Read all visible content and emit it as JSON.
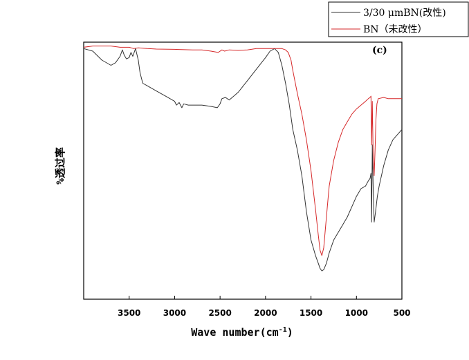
{
  "chart_data": {
    "type": "line",
    "panel_label": "(c)",
    "xlabel": "Wave number(cm",
    "xlabel_sup": "-1",
    "xlabel_end": ")",
    "ylabel": "%透过率",
    "xlim": [
      4000,
      500
    ],
    "ylim": [
      0,
      100
    ],
    "x_ticks": [
      3500,
      3000,
      2500,
      2000,
      1500,
      1000,
      500
    ],
    "x_tick_labels": [
      "3500",
      "3000",
      "2500",
      "2000",
      "1500",
      "1000",
      "500"
    ],
    "legend_placement": "top-right",
    "series": [
      {
        "name": "3/30 μmBN(改性)",
        "color": "#333333",
        "points": [
          [
            4000,
            97.5
          ],
          [
            3900,
            96.5
          ],
          [
            3800,
            93
          ],
          [
            3700,
            91
          ],
          [
            3650,
            92
          ],
          [
            3600,
            94.5
          ],
          [
            3575,
            97
          ],
          [
            3555,
            95
          ],
          [
            3530,
            93.5
          ],
          [
            3500,
            94
          ],
          [
            3480,
            96
          ],
          [
            3460,
            94.5
          ],
          [
            3430,
            97.5
          ],
          [
            3400,
            93
          ],
          [
            3380,
            88
          ],
          [
            3350,
            84
          ],
          [
            3300,
            83
          ],
          [
            3200,
            81
          ],
          [
            3100,
            79
          ],
          [
            3000,
            77
          ],
          [
            2980,
            75.5
          ],
          [
            2950,
            76.5
          ],
          [
            2920,
            74.5
          ],
          [
            2900,
            76
          ],
          [
            2850,
            75.5
          ],
          [
            2700,
            75.5
          ],
          [
            2600,
            75
          ],
          [
            2530,
            74.5
          ],
          [
            2500,
            76
          ],
          [
            2480,
            78
          ],
          [
            2440,
            78.5
          ],
          [
            2400,
            77.5
          ],
          [
            2350,
            79
          ],
          [
            2300,
            80.5
          ],
          [
            2200,
            85
          ],
          [
            2100,
            89.5
          ],
          [
            2000,
            94
          ],
          [
            1950,
            96.5
          ],
          [
            1900,
            97.5
          ],
          [
            1860,
            96
          ],
          [
            1820,
            91
          ],
          [
            1780,
            84
          ],
          [
            1740,
            76
          ],
          [
            1700,
            66
          ],
          [
            1650,
            58
          ],
          [
            1600,
            48
          ],
          [
            1550,
            34
          ],
          [
            1500,
            23
          ],
          [
            1450,
            17
          ],
          [
            1420,
            14
          ],
          [
            1400,
            12
          ],
          [
            1380,
            11
          ],
          [
            1360,
            11.5
          ],
          [
            1330,
            14
          ],
          [
            1300,
            18
          ],
          [
            1250,
            23
          ],
          [
            1200,
            26
          ],
          [
            1150,
            29
          ],
          [
            1100,
            32
          ],
          [
            1050,
            36
          ],
          [
            1000,
            40
          ],
          [
            950,
            43
          ],
          [
            900,
            44
          ],
          [
            870,
            46
          ],
          [
            850,
            47
          ],
          [
            840,
            49
          ],
          [
            833,
            30
          ],
          [
            826,
            60
          ],
          [
            815,
            42
          ],
          [
            805,
            30
          ],
          [
            790,
            34
          ],
          [
            770,
            40
          ],
          [
            750,
            44
          ],
          [
            700,
            52
          ],
          [
            650,
            58
          ],
          [
            600,
            62
          ],
          [
            550,
            64
          ],
          [
            500,
            66
          ]
        ]
      },
      {
        "name": "BN（未改性）",
        "color": "#d62728",
        "points": [
          [
            4000,
            98
          ],
          [
            3900,
            98.5
          ],
          [
            3800,
            98.5
          ],
          [
            3700,
            98.5
          ],
          [
            3600,
            98
          ],
          [
            3500,
            98
          ],
          [
            3450,
            97.5
          ],
          [
            3400,
            97.8
          ],
          [
            3300,
            97.5
          ],
          [
            3200,
            97.3
          ],
          [
            3000,
            97.2
          ],
          [
            2800,
            97
          ],
          [
            2700,
            97
          ],
          [
            2600,
            96.5
          ],
          [
            2520,
            96
          ],
          [
            2480,
            97
          ],
          [
            2450,
            96.5
          ],
          [
            2400,
            97
          ],
          [
            2300,
            96.8
          ],
          [
            2200,
            97
          ],
          [
            2100,
            97.5
          ],
          [
            2000,
            97.5
          ],
          [
            1900,
            97.5
          ],
          [
            1820,
            97.5
          ],
          [
            1780,
            97
          ],
          [
            1750,
            96
          ],
          [
            1720,
            93
          ],
          [
            1700,
            89
          ],
          [
            1650,
            80
          ],
          [
            1600,
            72
          ],
          [
            1550,
            62
          ],
          [
            1500,
            50
          ],
          [
            1450,
            35
          ],
          [
            1420,
            25
          ],
          [
            1400,
            19
          ],
          [
            1380,
            17
          ],
          [
            1360,
            20
          ],
          [
            1340,
            28
          ],
          [
            1320,
            36
          ],
          [
            1300,
            44
          ],
          [
            1250,
            54
          ],
          [
            1200,
            61
          ],
          [
            1150,
            66
          ],
          [
            1100,
            69
          ],
          [
            1050,
            72
          ],
          [
            1000,
            74
          ],
          [
            950,
            75.5
          ],
          [
            900,
            77
          ],
          [
            870,
            78
          ],
          [
            850,
            78.5
          ],
          [
            840,
            79
          ],
          [
            833,
            60
          ],
          [
            826,
            77
          ],
          [
            816,
            55
          ],
          [
            805,
            48
          ],
          [
            795,
            58
          ],
          [
            785,
            70
          ],
          [
            775,
            76
          ],
          [
            760,
            78
          ],
          [
            700,
            78.5
          ],
          [
            650,
            78
          ],
          [
            600,
            78
          ],
          [
            550,
            78
          ],
          [
            500,
            78
          ]
        ]
      }
    ]
  }
}
